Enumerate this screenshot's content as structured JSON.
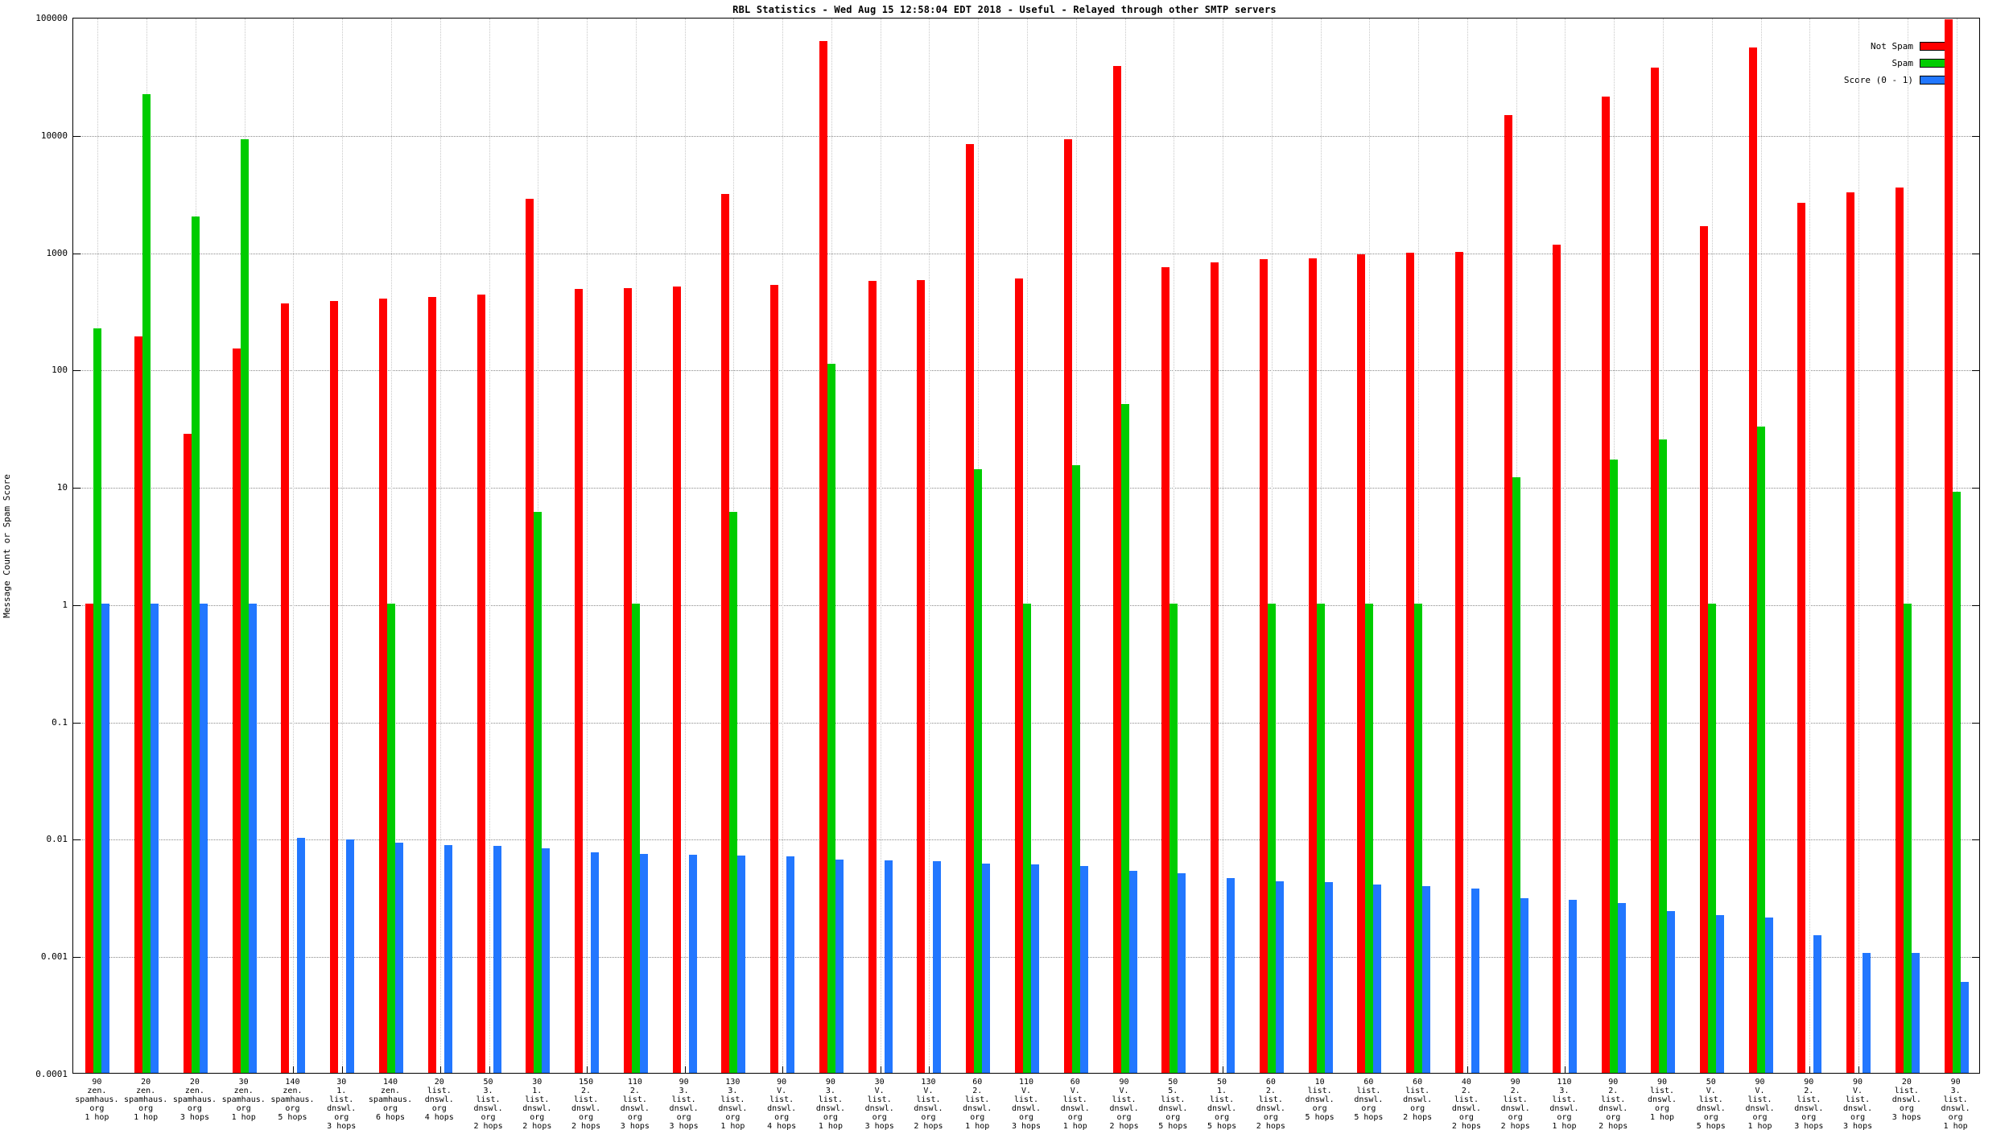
{
  "chart_data": {
    "type": "bar",
    "title": "RBL Statistics - Wed Aug 15 12:58:04 EDT 2018 - Useful - Relayed through other SMTP servers",
    "ylabel": "Message Count or Spam Score",
    "xlabel": "",
    "y_scale": "log",
    "ylim": [
      0.0001,
      100000
    ],
    "y_ticks": [
      "100000",
      "10000",
      "1000",
      "100",
      "10",
      "1",
      "0.1",
      "0.01",
      "0.001",
      "0.0001"
    ],
    "grid": true,
    "legend_position": "top-right",
    "legend": [
      {
        "label": "Not Spam",
        "color": "#ff0000"
      },
      {
        "label": "Spam",
        "color": "#00cc00"
      },
      {
        "label": "Score (0 - 1)",
        "color": "#2277ff"
      }
    ],
    "categories": [
      [
        "90",
        "zen.",
        "spamhaus.",
        "org",
        "1 hop"
      ],
      [
        "20",
        "zen.",
        "spamhaus.",
        "org",
        "1 hop"
      ],
      [
        "20",
        "zen.",
        "spamhaus.",
        "org",
        "3 hops"
      ],
      [
        "30",
        "zen.",
        "spamhaus.",
        "org",
        "1 hop"
      ],
      [
        "140",
        "zen.",
        "spamhaus.",
        "org",
        "5 hops"
      ],
      [
        "30",
        "1.",
        "list.",
        "dnswl.",
        "org",
        "3 hops"
      ],
      [
        "140",
        "zen.",
        "spamhaus.",
        "org",
        "6 hops"
      ],
      [
        "20",
        "list.",
        "dnswl.",
        "org",
        "4 hops"
      ],
      [
        "50",
        "3.",
        "list.",
        "dnswl.",
        "org",
        "2 hops"
      ],
      [
        "30",
        "1.",
        "list.",
        "dnswl.",
        "org",
        "2 hops"
      ],
      [
        "150",
        "2.",
        "list.",
        "dnswl.",
        "org",
        "2 hops"
      ],
      [
        "110",
        "2.",
        "list.",
        "dnswl.",
        "org",
        "3 hops"
      ],
      [
        "90",
        "3.",
        "list.",
        "dnswl.",
        "org",
        "3 hops"
      ],
      [
        "130",
        "3.",
        "list.",
        "dnswl.",
        "org",
        "1 hop"
      ],
      [
        "90",
        "V.",
        "list.",
        "dnswl.",
        "org",
        "4 hops"
      ],
      [
        "90",
        "3.",
        "list.",
        "dnswl.",
        "org",
        "1 hop"
      ],
      [
        "30",
        "V.",
        "list.",
        "dnswl.",
        "org",
        "3 hops"
      ],
      [
        "130",
        "V.",
        "list.",
        "dnswl.",
        "org",
        "2 hops"
      ],
      [
        "60",
        "2.",
        "list.",
        "dnswl.",
        "org",
        "1 hop"
      ],
      [
        "110",
        "V.",
        "list.",
        "dnswl.",
        "org",
        "3 hops"
      ],
      [
        "60",
        "V.",
        "list.",
        "dnswl.",
        "org",
        "1 hop"
      ],
      [
        "90",
        "V.",
        "list.",
        "dnswl.",
        "org",
        "2 hops"
      ],
      [
        "50",
        "5.",
        "list.",
        "dnswl.",
        "org",
        "5 hops"
      ],
      [
        "50",
        "1.",
        "list.",
        "dnswl.",
        "org",
        "5 hops"
      ],
      [
        "60",
        "2.",
        "list.",
        "dnswl.",
        "org",
        "2 hops"
      ],
      [
        "10",
        "list.",
        "dnswl.",
        "org",
        "5 hops"
      ],
      [
        "60",
        "list.",
        "dnswl.",
        "org",
        "5 hops"
      ],
      [
        "60",
        "list.",
        "dnswl.",
        "org",
        "2 hops"
      ],
      [
        "40",
        "2.",
        "list.",
        "dnswl.",
        "org",
        "2 hops"
      ],
      [
        "90",
        "2.",
        "list.",
        "dnswl.",
        "org",
        "2 hops"
      ],
      [
        "110",
        "3.",
        "list.",
        "dnswl.",
        "org",
        "1 hop"
      ],
      [
        "90",
        "2.",
        "list.",
        "dnswl.",
        "org",
        "2 hops"
      ],
      [
        "90",
        "list.",
        "dnswl.",
        "org",
        "1 hop"
      ],
      [
        "50",
        "V.",
        "list.",
        "dnswl.",
        "org",
        "5 hops"
      ],
      [
        "90",
        "V.",
        "list.",
        "dnswl.",
        "org",
        "1 hop"
      ],
      [
        "90",
        "2.",
        "list.",
        "dnswl.",
        "org",
        "3 hops"
      ],
      [
        "90",
        "V.",
        "list.",
        "dnswl.",
        "org",
        "3 hops"
      ],
      [
        "20",
        "list.",
        "dnswl.",
        "org",
        "3 hops"
      ],
      [
        "90",
        "3.",
        "list.",
        "dnswl.",
        "org",
        "1 hop"
      ]
    ],
    "series": [
      {
        "name": "Not Spam",
        "color": "#ff0000",
        "values": [
          1,
          190,
          28,
          150,
          360,
          380,
          400,
          410,
          430,
          2800,
          480,
          490,
          500,
          3100,
          520,
          62000,
          560,
          570,
          8200,
          590,
          9000,
          38000,
          740,
          810,
          860,
          880,
          940,
          980,
          1000,
          14500,
          1150,
          21000,
          37000,
          1650,
          55000,
          2600,
          3200,
          3500,
          95000
        ]
      },
      {
        "name": "Spam",
        "color": "#00cc00",
        "values": [
          220,
          22000,
          2000,
          9000,
          null,
          null,
          1,
          null,
          null,
          6,
          null,
          1,
          null,
          6,
          null,
          110,
          null,
          null,
          14,
          1,
          15,
          50,
          1,
          null,
          1,
          1,
          1,
          1,
          null,
          12,
          null,
          17,
          25,
          1,
          32,
          null,
          null,
          1,
          9
        ]
      },
      {
        "name": "Score (0 - 1)",
        "color": "#2277ff",
        "values": [
          1,
          1,
          1,
          1,
          0.01,
          0.0097,
          0.0092,
          0.0088,
          0.0086,
          0.0082,
          0.0076,
          0.0073,
          0.0072,
          0.0071,
          0.007,
          0.0066,
          0.0065,
          0.0064,
          0.0061,
          0.006,
          0.0058,
          0.0053,
          0.005,
          0.0046,
          0.0043,
          0.0042,
          0.004,
          0.0039,
          0.0037,
          0.0031,
          0.003,
          0.0028,
          0.0024,
          0.0022,
          0.0021,
          0.0015,
          0.00105,
          0.00105,
          0.0006
        ]
      }
    ]
  }
}
